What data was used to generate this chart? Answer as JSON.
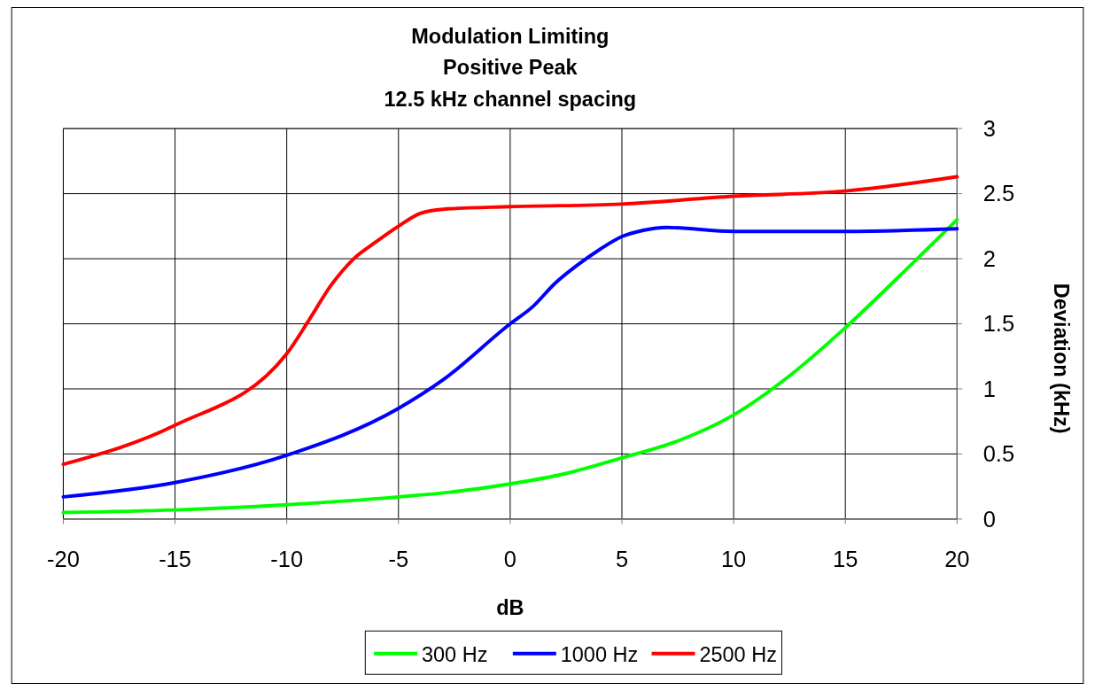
{
  "chart_data": {
    "type": "line",
    "title": "Modulation Limiting\nPositive Peak\n12.5 kHz channel spacing",
    "xlabel": "dB",
    "ylabel": "Deviation (kHz)",
    "xlim": [
      -20,
      20
    ],
    "xticks": [
      -20,
      -15,
      -10,
      -5,
      0,
      5,
      10,
      15,
      20
    ],
    "ylim": [
      0,
      3
    ],
    "yticks": [
      0,
      0.5,
      1,
      1.5,
      2,
      2.5,
      3
    ],
    "grid": true,
    "legend": "bottom",
    "marker": "none",
    "line_style": "solid",
    "series": [
      {
        "name": "300 Hz",
        "color": "#00ff00",
        "x": [
          -20,
          -15,
          -10,
          -5,
          -2.5,
          0,
          2.5,
          5,
          7.5,
          10,
          12.5,
          15,
          17.5,
          20
        ],
        "values": [
          0.05,
          0.07,
          0.11,
          0.17,
          0.21,
          0.27,
          0.35,
          0.47,
          0.6,
          0.8,
          1.1,
          1.47,
          1.88,
          2.3
        ]
      },
      {
        "name": "1000 Hz",
        "color": "#0000ff",
        "x": [
          -20,
          -15,
          -10,
          -5,
          -3,
          0,
          1,
          2,
          3,
          4,
          5,
          6,
          7,
          10,
          15,
          20
        ],
        "values": [
          0.17,
          0.28,
          0.49,
          0.85,
          1.07,
          1.5,
          1.63,
          1.81,
          1.95,
          2.07,
          2.17,
          2.22,
          2.24,
          2.21,
          2.21,
          2.23
        ]
      },
      {
        "name": "2500 Hz",
        "color": "#ff0000",
        "x": [
          -20,
          -15,
          -10,
          -9,
          -8,
          -7,
          -6,
          -5,
          -4,
          -3,
          0,
          5,
          10,
          15,
          20
        ],
        "values": [
          0.42,
          0.72,
          1.27,
          1.53,
          1.8,
          2.0,
          2.13,
          2.25,
          2.35,
          2.38,
          2.4,
          2.42,
          2.48,
          2.52,
          2.63
        ]
      }
    ]
  }
}
